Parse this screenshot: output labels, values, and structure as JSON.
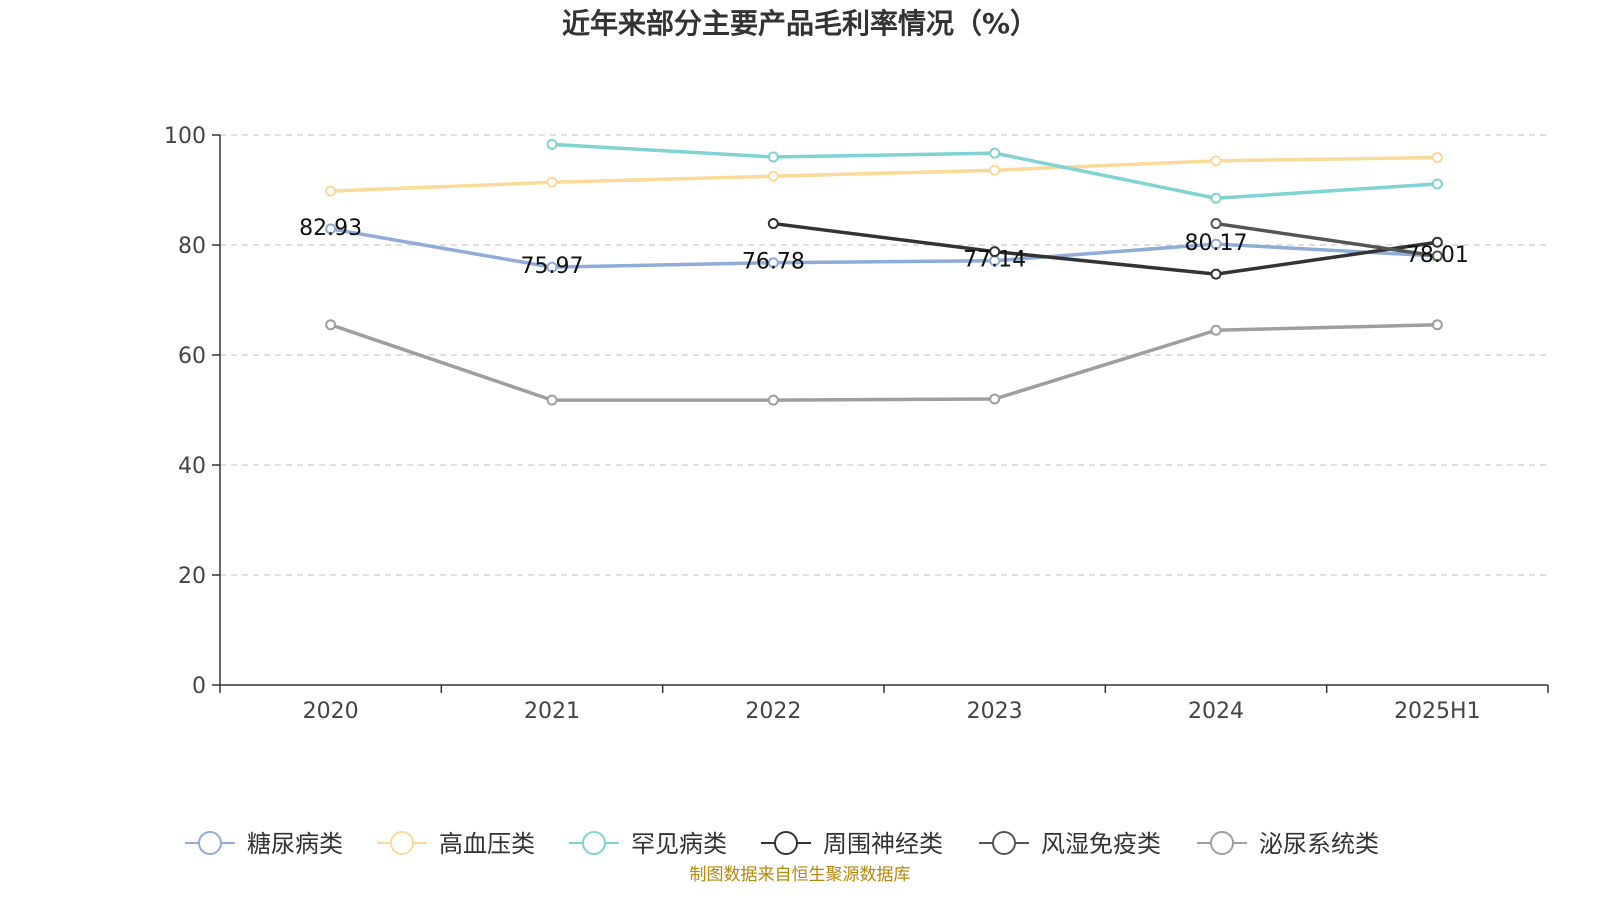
{
  "chart_data": {
    "type": "line",
    "title": "近年来部分主要产品毛利率情况（%）",
    "xlabel": "",
    "ylabel": "",
    "categories": [
      "2020",
      "2021",
      "2022",
      "2023",
      "2024",
      "2025H1"
    ],
    "ylim": [
      0,
      100
    ],
    "yticks": [
      0,
      20,
      40,
      60,
      80,
      100
    ],
    "grid": "horizontal-dashed",
    "legend_position": "bottom",
    "series": [
      {
        "name": "糖尿病类",
        "color": "#8fabd7",
        "values": [
          82.93,
          75.97,
          76.78,
          77.14,
          80.17,
          78.01
        ],
        "labels": [
          "82.93",
          "75.97",
          "76.78",
          "77.14",
          "80.17",
          "78.01"
        ]
      },
      {
        "name": "高血压类",
        "color": "#fad999",
        "values": [
          89.8,
          91.4,
          92.5,
          93.6,
          95.3,
          95.9
        ]
      },
      {
        "name": "罕见病类",
        "color": "#7fd3d2",
        "values": [
          null,
          98.3,
          96.0,
          96.7,
          88.5,
          91.1
        ]
      },
      {
        "name": "周围神经类",
        "color": "#333333",
        "values": [
          null,
          null,
          83.9,
          78.8,
          74.7,
          80.5
        ]
      },
      {
        "name": "风湿免疫类",
        "color": "#555555",
        "values": [
          null,
          null,
          null,
          null,
          83.9,
          78.0
        ]
      },
      {
        "name": "泌尿系统类",
        "color": "#9e9e9e",
        "values": [
          65.5,
          51.8,
          51.8,
          52.0,
          64.5,
          65.5
        ]
      }
    ]
  },
  "source": "制图数据来自恒生聚源数据库"
}
